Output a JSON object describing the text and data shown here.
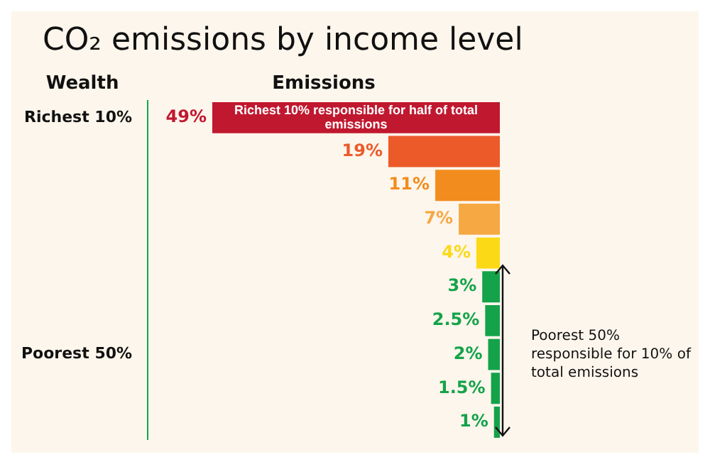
{
  "chart_data": {
    "type": "bar",
    "orientation": "horizontal",
    "title": "CO₂ emissions by income level",
    "xlabel": "Emissions",
    "ylabel": "Wealth",
    "categories": [
      "Richest 10%",
      null,
      null,
      null,
      null,
      null,
      null,
      "Poorest 50%",
      null,
      null
    ],
    "values": [
      49,
      19,
      11,
      7,
      4,
      3,
      2.5,
      2,
      1.5,
      1
    ],
    "colors": [
      "#c0182f",
      "#ec5a2a",
      "#f28c1e",
      "#f6a843",
      "#fcd916",
      "#14a34a",
      "#14a34a",
      "#14a34a",
      "#14a34a",
      "#14a34a"
    ],
    "value_labels": [
      "49%",
      "19%",
      "11%",
      "7%",
      "4%",
      "3%",
      "2.5%",
      "2%",
      "1.5%",
      "1%"
    ],
    "grid": false,
    "legend": false,
    "annotations": [
      "Richest 10% responsible for half of total emissions",
      "Poorest 50% responsible for 10% of total emissions"
    ]
  }
}
